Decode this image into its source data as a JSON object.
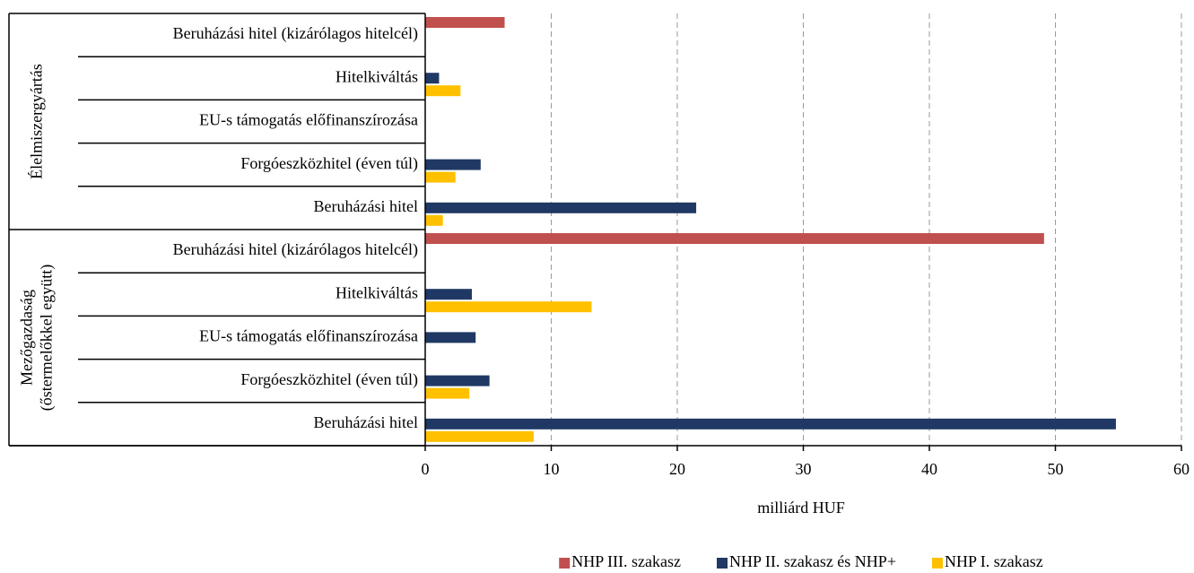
{
  "chart_data": {
    "type": "bar",
    "orientation": "horizontal",
    "categories": [
      "Beruházási hitel (kizárólagos hitelcél)",
      "Hitelkiváltás",
      "EU-s támogatás előfinanszírozása",
      "Forgóeszközhitel (éven túl)",
      "Beruházási hitel",
      "Beruházási hitel (kizárólagos hitelcél)",
      "Hitelkiváltás",
      "EU-s támogatás előfinanszírozása",
      "Forgóeszközhitel (éven túl)",
      "Beruházási hitel"
    ],
    "groups": [
      {
        "lines": [
          "Élelmiszergyártás"
        ],
        "size": 5
      },
      {
        "lines": [
          "Mezőgazdaság",
          "(őstermelőkkel együtt)"
        ],
        "size": 5
      }
    ],
    "series": [
      {
        "name": "NHP III. szakasz",
        "color": "#c0504d",
        "values": [
          6.3,
          null,
          null,
          null,
          null,
          49.1,
          null,
          null,
          null,
          null
        ]
      },
      {
        "name": "NHP II. szakasz és NHP+",
        "color": "#1f3864",
        "values": [
          null,
          1.1,
          null,
          4.4,
          21.5,
          null,
          3.7,
          4.0,
          5.1,
          54.8
        ]
      },
      {
        "name": "NHP I. szakasz",
        "color": "#ffc000",
        "values": [
          null,
          2.8,
          null,
          2.4,
          1.4,
          null,
          13.2,
          null,
          3.5,
          8.6
        ]
      }
    ],
    "xlim": [
      0,
      60
    ],
    "xticks": [
      0,
      10,
      20,
      30,
      40,
      50,
      60
    ],
    "xlabel": "milliárd HUF",
    "grid": true,
    "legend": "bottom"
  }
}
